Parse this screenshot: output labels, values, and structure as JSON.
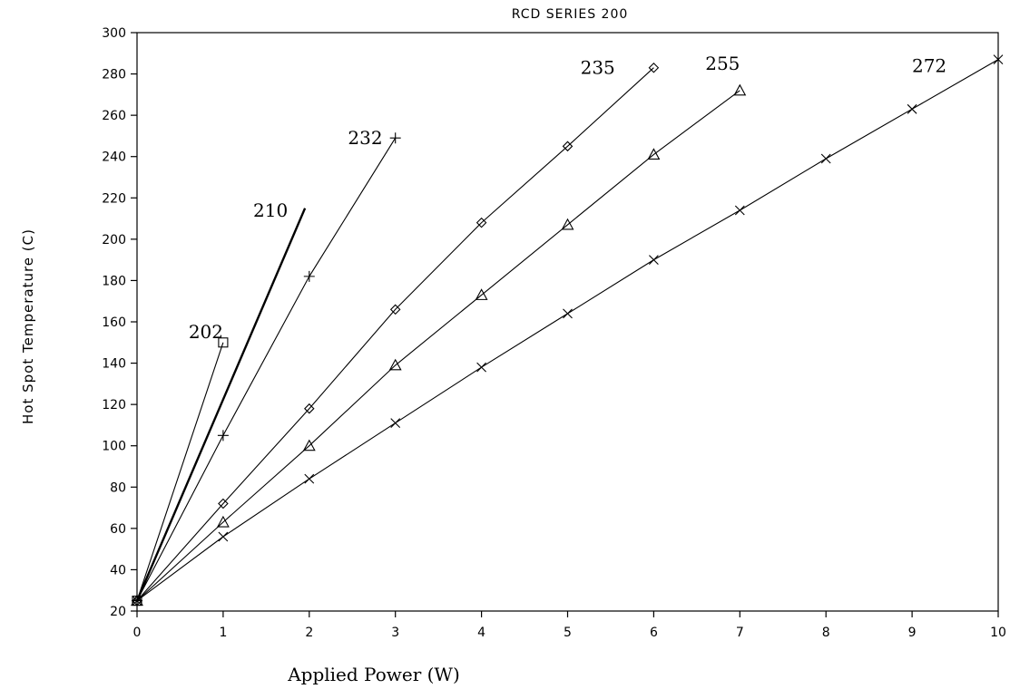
{
  "chart_data": {
    "type": "line",
    "title": "RCD SERIES 200",
    "xlabel": "Applied Power (W)",
    "ylabel": "Hot Spot Temperature (C)",
    "xlim": [
      0,
      10
    ],
    "ylim": [
      20,
      300
    ],
    "xticks": [
      0,
      1,
      2,
      3,
      4,
      5,
      6,
      7,
      8,
      9,
      10
    ],
    "yticks": [
      20,
      40,
      60,
      80,
      100,
      120,
      140,
      160,
      180,
      200,
      220,
      240,
      260,
      280,
      300
    ],
    "grid": false,
    "legend": "none",
    "series": [
      {
        "name": "202",
        "marker": "square",
        "x": [
          0,
          1
        ],
        "y": [
          25,
          150
        ]
      },
      {
        "name": "210",
        "marker": "none",
        "bold": true,
        "x": [
          0,
          1.95
        ],
        "y": [
          25,
          215
        ]
      },
      {
        "name": "232",
        "marker": "plus",
        "x": [
          0,
          1,
          2,
          3
        ],
        "y": [
          25,
          105,
          182,
          249
        ]
      },
      {
        "name": "235",
        "marker": "diamond",
        "x": [
          0,
          1,
          2,
          3,
          4,
          5,
          6
        ],
        "y": [
          25,
          72,
          118,
          166,
          208,
          245,
          283
        ]
      },
      {
        "name": "255",
        "marker": "triangle",
        "x": [
          0,
          1,
          2,
          3,
          4,
          5,
          6,
          7
        ],
        "y": [
          25,
          63,
          100,
          139,
          173,
          207,
          241,
          272
        ]
      },
      {
        "name": "272",
        "marker": "x",
        "x": [
          0,
          1,
          2,
          3,
          4,
          5,
          6,
          7,
          8,
          9,
          10
        ],
        "y": [
          25,
          56,
          84,
          111,
          138,
          164,
          190,
          214,
          239,
          263,
          287
        ]
      }
    ],
    "annotations": [
      {
        "text": "202",
        "x": 0.8,
        "y": 152
      },
      {
        "text": "210",
        "x": 1.55,
        "y": 211
      },
      {
        "text": "232",
        "x": 2.65,
        "y": 246
      },
      {
        "text": "235",
        "x": 5.35,
        "y": 280
      },
      {
        "text": "255",
        "x": 6.8,
        "y": 282
      },
      {
        "text": "272",
        "x": 9.2,
        "y": 281
      }
    ]
  }
}
